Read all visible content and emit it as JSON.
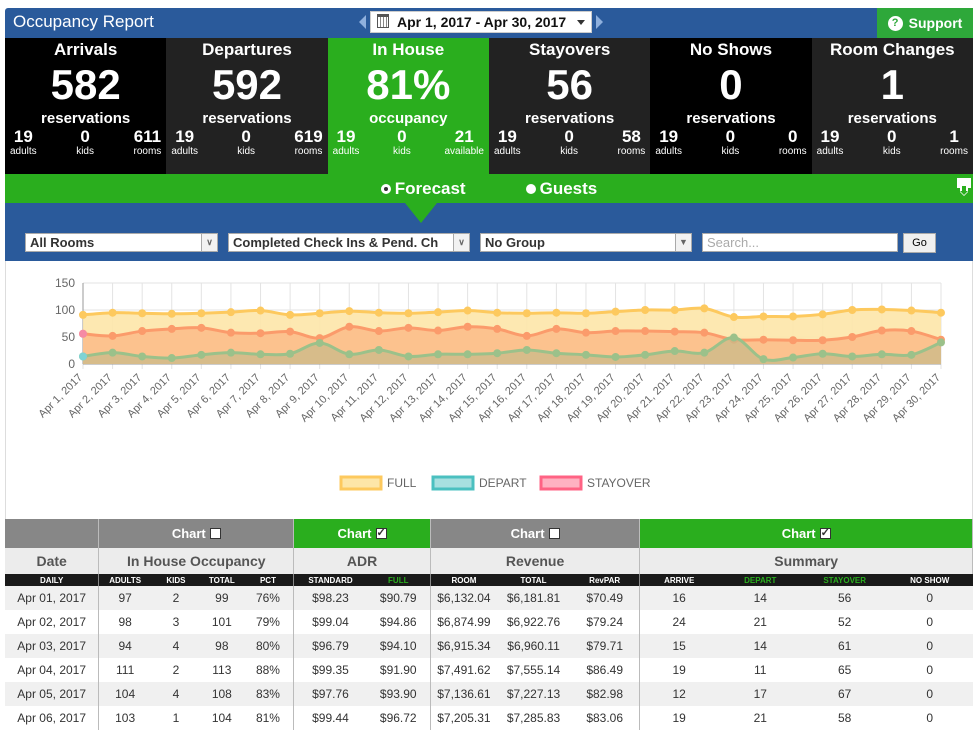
{
  "header": {
    "title": "Occupancy Report",
    "date_range": "Apr 1, 2017 - Apr 30, 2017",
    "support_label": "Support",
    "support_color": "#2ea83a",
    "brand_color": "#2a5a9b"
  },
  "stats": [
    {
      "label": "Arrivals",
      "value": "582",
      "unit": "reservations",
      "mini": [
        {
          "n": "19",
          "t": "adults"
        },
        {
          "n": "0",
          "t": "kids"
        },
        {
          "n": "611",
          "t": "rooms"
        }
      ]
    },
    {
      "label": "Departures",
      "value": "592",
      "unit": "reservations",
      "mini": [
        {
          "n": "19",
          "t": "adults"
        },
        {
          "n": "0",
          "t": "kids"
        },
        {
          "n": "619",
          "t": "rooms"
        }
      ]
    },
    {
      "label": "In House",
      "value": "81%",
      "unit": "occupancy",
      "mini": [
        {
          "n": "19",
          "t": "adults"
        },
        {
          "n": "0",
          "t": "kids"
        },
        {
          "n": "21",
          "t": "available"
        }
      ]
    },
    {
      "label": "Stayovers",
      "value": "56",
      "unit": "reservations",
      "mini": [
        {
          "n": "19",
          "t": "adults"
        },
        {
          "n": "0",
          "t": "kids"
        },
        {
          "n": "58",
          "t": "rooms"
        }
      ]
    },
    {
      "label": "No Shows",
      "value": "0",
      "unit": "reservations",
      "mini": [
        {
          "n": "19",
          "t": "adults"
        },
        {
          "n": "0",
          "t": "kids"
        },
        {
          "n": "0",
          "t": "rooms"
        }
      ]
    },
    {
      "label": "Room Changes",
      "value": "1",
      "unit": "reservations",
      "mini": [
        {
          "n": "19",
          "t": "adults"
        },
        {
          "n": "0",
          "t": "kids"
        },
        {
          "n": "1",
          "t": "rooms"
        }
      ]
    }
  ],
  "tabs": [
    {
      "label": "Forecast",
      "selected": true
    },
    {
      "label": "Guests",
      "selected": false
    }
  ],
  "filters": {
    "rooms": "All Rooms",
    "status": "Completed Check Ins & Pend. Ch",
    "group": "No Group",
    "search_placeholder": "Search...",
    "search_value": "",
    "go_label": "Go"
  },
  "chart_data": {
    "type": "area",
    "title": "",
    "xlabel": "",
    "ylabel": "",
    "ylim": [
      0,
      150
    ],
    "yticks": [
      0,
      50,
      100,
      150
    ],
    "grid": true,
    "legend_position": "bottom",
    "categories": [
      "Apr 1, 2017",
      "Apr 2, 2017",
      "Apr 3, 2017",
      "Apr 4, 2017",
      "Apr 5, 2017",
      "Apr 6, 2017",
      "Apr 7, 2017",
      "Apr 8, 2017",
      "Apr 9, 2017",
      "Apr 10, 2017",
      "Apr 11, 2017",
      "Apr 12, 2017",
      "Apr 13, 2017",
      "Apr 14, 2017",
      "Apr 15, 2017",
      "Apr 16, 2017",
      "Apr 17, 2017",
      "Apr 18, 2017",
      "Apr 19, 2017",
      "Apr 20, 2017",
      "Apr 21, 2017",
      "Apr 22, 2017",
      "Apr 23, 2017",
      "Apr 24, 2017",
      "Apr 25, 2017",
      "Apr 26, 2017",
      "Apr 27, 2017",
      "Apr 28, 2017",
      "Apr 29, 2017",
      "Apr 30, 2017"
    ],
    "series": [
      {
        "name": "FULL",
        "line": "#fdc95e",
        "fill": "#fde6a8",
        "values": [
          91,
          95,
          94,
          93,
          94,
          96,
          99,
          91,
          94,
          98,
          95,
          94,
          96,
          99,
          95,
          94,
          95,
          94,
          97,
          100,
          100,
          103,
          87,
          88,
          88,
          92,
          100,
          101,
          99,
          95
        ]
      },
      {
        "name": "DEPART",
        "line": "#9bc18a",
        "fill": "#cbb988",
        "legend_color": "#4bc0c0",
        "values": [
          14,
          21,
          14,
          11,
          17,
          21,
          18,
          19,
          39,
          18,
          26,
          14,
          18,
          18,
          20,
          26,
          20,
          17,
          13,
          17,
          24,
          21,
          49,
          9,
          12,
          19,
          14,
          18,
          17,
          40
        ]
      },
      {
        "name": "STAYOVER",
        "line": "#fb9b6b",
        "fill": "#fbbb88",
        "legend_color": "#ff6384",
        "values": [
          56,
          52,
          61,
          65,
          67,
          58,
          57,
          60,
          48,
          69,
          61,
          67,
          62,
          69,
          65,
          52,
          65,
          58,
          61,
          61,
          60,
          58,
          45,
          45,
          44,
          44,
          50,
          62,
          61,
          45
        ]
      }
    ],
    "legend": [
      {
        "label": "FULL",
        "fill": "#fde6a8",
        "border": "#fdc95e"
      },
      {
        "label": "DEPART",
        "fill": "#a8e0e0",
        "border": "#4bc0c0"
      },
      {
        "label": "STAYOVER",
        "fill": "#ffb1c1",
        "border": "#ff6384"
      }
    ]
  },
  "table": {
    "chart_row": [
      {
        "label": "",
        "checked": null
      },
      {
        "label": "Chart",
        "checked": false
      },
      {
        "label": "Chart",
        "checked": true
      },
      {
        "label": "Chart",
        "checked": false
      },
      {
        "label": "Chart",
        "checked": true
      }
    ],
    "groups": [
      "Date",
      "In House Occupancy",
      "ADR",
      "Revenue",
      "Summary"
    ],
    "columns": [
      "DAILY",
      "ADULTS",
      "KIDS",
      "TOTAL",
      "PCT",
      "STANDARD",
      "FULL",
      "ROOM",
      "TOTAL",
      "RevPAR",
      "ARRIVE",
      "DEPART",
      "STAYOVER",
      "NO SHOW"
    ],
    "rows": [
      [
        "Apr 01, 2017",
        "97",
        "2",
        "99",
        "76%",
        "$98.23",
        "$90.79",
        "$6,132.04",
        "$6,181.81",
        "$70.49",
        "16",
        "14",
        "56",
        "0"
      ],
      [
        "Apr 02, 2017",
        "98",
        "3",
        "101",
        "79%",
        "$99.04",
        "$94.86",
        "$6,874.99",
        "$6,922.76",
        "$79.24",
        "24",
        "21",
        "52",
        "0"
      ],
      [
        "Apr 03, 2017",
        "94",
        "4",
        "98",
        "80%",
        "$96.79",
        "$94.10",
        "$6,915.34",
        "$6,960.11",
        "$79.71",
        "15",
        "14",
        "61",
        "0"
      ],
      [
        "Apr 04, 2017",
        "111",
        "2",
        "113",
        "88%",
        "$99.35",
        "$91.90",
        "$7,491.62",
        "$7,555.14",
        "$86.49",
        "19",
        "11",
        "65",
        "0"
      ],
      [
        "Apr 05, 2017",
        "104",
        "4",
        "108",
        "83%",
        "$97.76",
        "$93.90",
        "$7,136.61",
        "$7,227.13",
        "$82.98",
        "12",
        "17",
        "67",
        "0"
      ],
      [
        "Apr 06, 2017",
        "103",
        "1",
        "104",
        "81%",
        "$99.44",
        "$96.72",
        "$7,205.31",
        "$7,285.83",
        "$83.06",
        "19",
        "21",
        "58",
        "0"
      ]
    ]
  }
}
